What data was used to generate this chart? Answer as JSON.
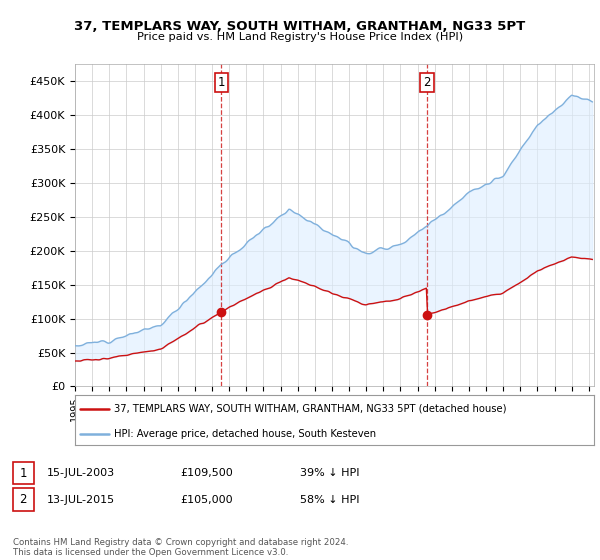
{
  "title": "37, TEMPLARS WAY, SOUTH WITHAM, GRANTHAM, NG33 5PT",
  "subtitle": "Price paid vs. HM Land Registry's House Price Index (HPI)",
  "ylabel_ticks": [
    "£0",
    "£50K",
    "£100K",
    "£150K",
    "£200K",
    "£250K",
    "£300K",
    "£350K",
    "£400K",
    "£450K"
  ],
  "ytick_values": [
    0,
    50000,
    100000,
    150000,
    200000,
    250000,
    300000,
    350000,
    400000,
    450000
  ],
  "ylim": [
    0,
    475000
  ],
  "xlim_start": 1995.0,
  "xlim_end": 2025.3,
  "hpi_color": "#7fb0dc",
  "price_color": "#cc1111",
  "vline_color": "#cc1111",
  "fill_color": "#ddeeff",
  "marker1_x": 2003.54,
  "marker1_y": 109500,
  "marker2_x": 2015.54,
  "marker2_y": 105000,
  "legend_house_label": "37, TEMPLARS WAY, SOUTH WITHAM, GRANTHAM, NG33 5PT (detached house)",
  "legend_hpi_label": "HPI: Average price, detached house, South Kesteven",
  "annotation1_label": "1",
  "annotation2_label": "2",
  "footer": "Contains HM Land Registry data © Crown copyright and database right 2024.\nThis data is licensed under the Open Government Licence v3.0.",
  "background_color": "#ffffff",
  "grid_color": "#cccccc"
}
